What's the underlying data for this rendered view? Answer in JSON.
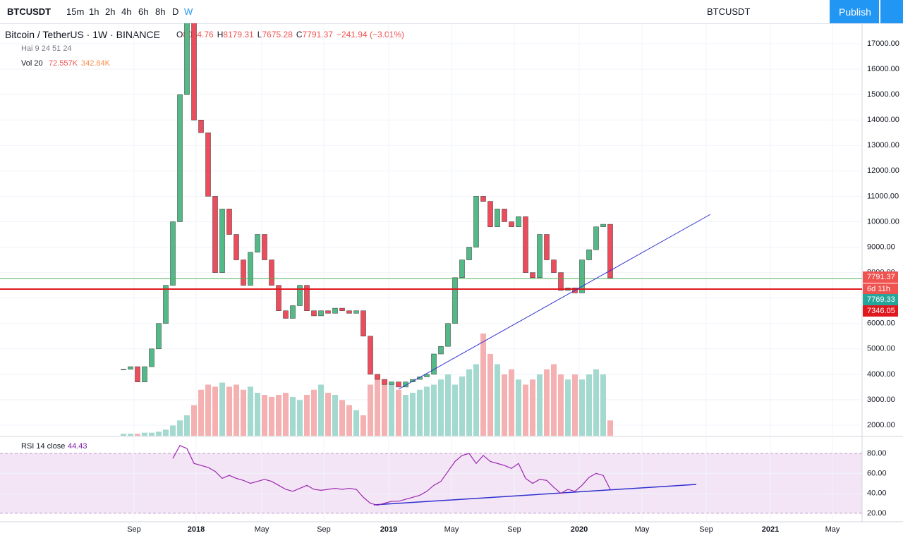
{
  "toolbar": {
    "symbol": "BTCUSDT",
    "intervals": [
      "15m",
      "1h",
      "2h",
      "4h",
      "6h",
      "8h",
      "D",
      "W"
    ],
    "compare_symbol": "BTCUSDT",
    "publish": "Publish"
  },
  "legend": {
    "title": "Bitcoin / TetherUS · 1W · BINANCE",
    "ohlc": [
      {
        "k": "O",
        "v": "8034.76"
      },
      {
        "k": "H",
        "v": "8179.31"
      },
      {
        "k": "L",
        "v": "7675.28"
      },
      {
        "k": "C",
        "v": "7791.37"
      }
    ],
    "change": "−241.94 (−3.01%)",
    "indicator": "Hai 9 24 51 24",
    "vol_name": "Vol 20",
    "vol_a": "72.557K",
    "vol_b": "342.84K",
    "rsi_name": "RSI 14 close",
    "rsi_value": "44.43"
  },
  "chart_data": {
    "type": "candlestick",
    "closes": [
      4200,
      4300,
      3700,
      4300,
      5000,
      6000,
      7500,
      10000,
      15000,
      18000,
      14000,
      13500,
      11000,
      8000,
      10500,
      9500,
      8500,
      7500,
      8800,
      9500,
      8500,
      7500,
      6500,
      6200,
      6700,
      7500,
      6500,
      6300,
      6500,
      6400,
      6600,
      6500,
      6400,
      6500,
      5500,
      4000,
      3800,
      3600,
      3700,
      3500,
      3700,
      3800,
      3900,
      4000,
      4800,
      5100,
      6000,
      7800,
      8500,
      9000,
      11000,
      10800,
      9800,
      10500,
      10000,
      9800,
      10200,
      8000,
      7800,
      9500,
      8500,
      8000,
      7300,
      7400,
      7200,
      8500,
      8900,
      9800,
      9900,
      7791
    ],
    "volumes": [
      2,
      2,
      2,
      3,
      3,
      4,
      6,
      10,
      15,
      20,
      30,
      45,
      50,
      48,
      52,
      48,
      50,
      45,
      48,
      42,
      40,
      38,
      40,
      42,
      38,
      35,
      40,
      45,
      50,
      42,
      40,
      35,
      30,
      25,
      20,
      50,
      60,
      55,
      50,
      45,
      40,
      42,
      45,
      48,
      50,
      55,
      60,
      50,
      58,
      65,
      70,
      100,
      80,
      70,
      60,
      65,
      55,
      50,
      55,
      60,
      65,
      70,
      60,
      55,
      60,
      55,
      60,
      65,
      60,
      15
    ],
    "rsi": [
      null,
      null,
      null,
      null,
      null,
      null,
      null,
      75,
      88,
      85,
      70,
      68,
      66,
      62,
      55,
      58,
      55,
      53,
      50,
      52,
      54,
      52,
      48,
      44,
      42,
      45,
      48,
      44,
      43,
      44,
      45,
      44,
      45,
      44,
      36,
      30,
      28,
      30,
      32,
      32,
      34,
      36,
      38,
      42,
      48,
      52,
      62,
      72,
      78,
      80,
      70,
      78,
      72,
      70,
      68,
      65,
      70,
      55,
      50,
      54,
      53,
      46,
      40,
      44,
      42,
      48,
      56,
      60,
      58,
      44
    ],
    "ylim": [
      1584,
      17804
    ],
    "yticks": [
      {
        "value": 2000,
        "label": "2000.00"
      },
      {
        "value": 3000,
        "label": "3000.00"
      },
      {
        "value": 4000,
        "label": "4000.00"
      },
      {
        "value": 5000,
        "label": "5000.00"
      },
      {
        "value": 6000,
        "label": "6000.00"
      },
      {
        "value": 7000,
        "label": "7000.00"
      },
      {
        "value": 8000,
        "label": "8000.00"
      },
      {
        "value": 9000,
        "label": "9000.00"
      },
      {
        "value": 10000,
        "label": "10000.00"
      },
      {
        "value": 11000,
        "label": "11000.00"
      },
      {
        "value": 12000,
        "label": "12000.00"
      },
      {
        "value": 13000,
        "label": "13000.00"
      },
      {
        "value": 14000,
        "label": "14000.00"
      },
      {
        "value": 15000,
        "label": "15000.00"
      },
      {
        "value": 16000,
        "label": "16000.00"
      },
      {
        "value": 17000,
        "label": "17000.00"
      }
    ],
    "rsi_lim": [
      11.4,
      97.1
    ],
    "rsi_ticks": [
      {
        "value": 20,
        "label": "20.00"
      },
      {
        "value": 40,
        "label": "40.00"
      },
      {
        "value": 60,
        "label": "60.00"
      },
      {
        "value": 80,
        "label": "80.00"
      }
    ],
    "x_labels": [
      "Sep",
      "2018",
      "May",
      "Sep",
      "2019",
      "May",
      "Sep",
      "2020",
      "May",
      "Sep",
      "2021",
      "May"
    ],
    "price_labels": [
      "7791.37",
      "6d 11h",
      "7769.33",
      "7346.05"
    ]
  }
}
